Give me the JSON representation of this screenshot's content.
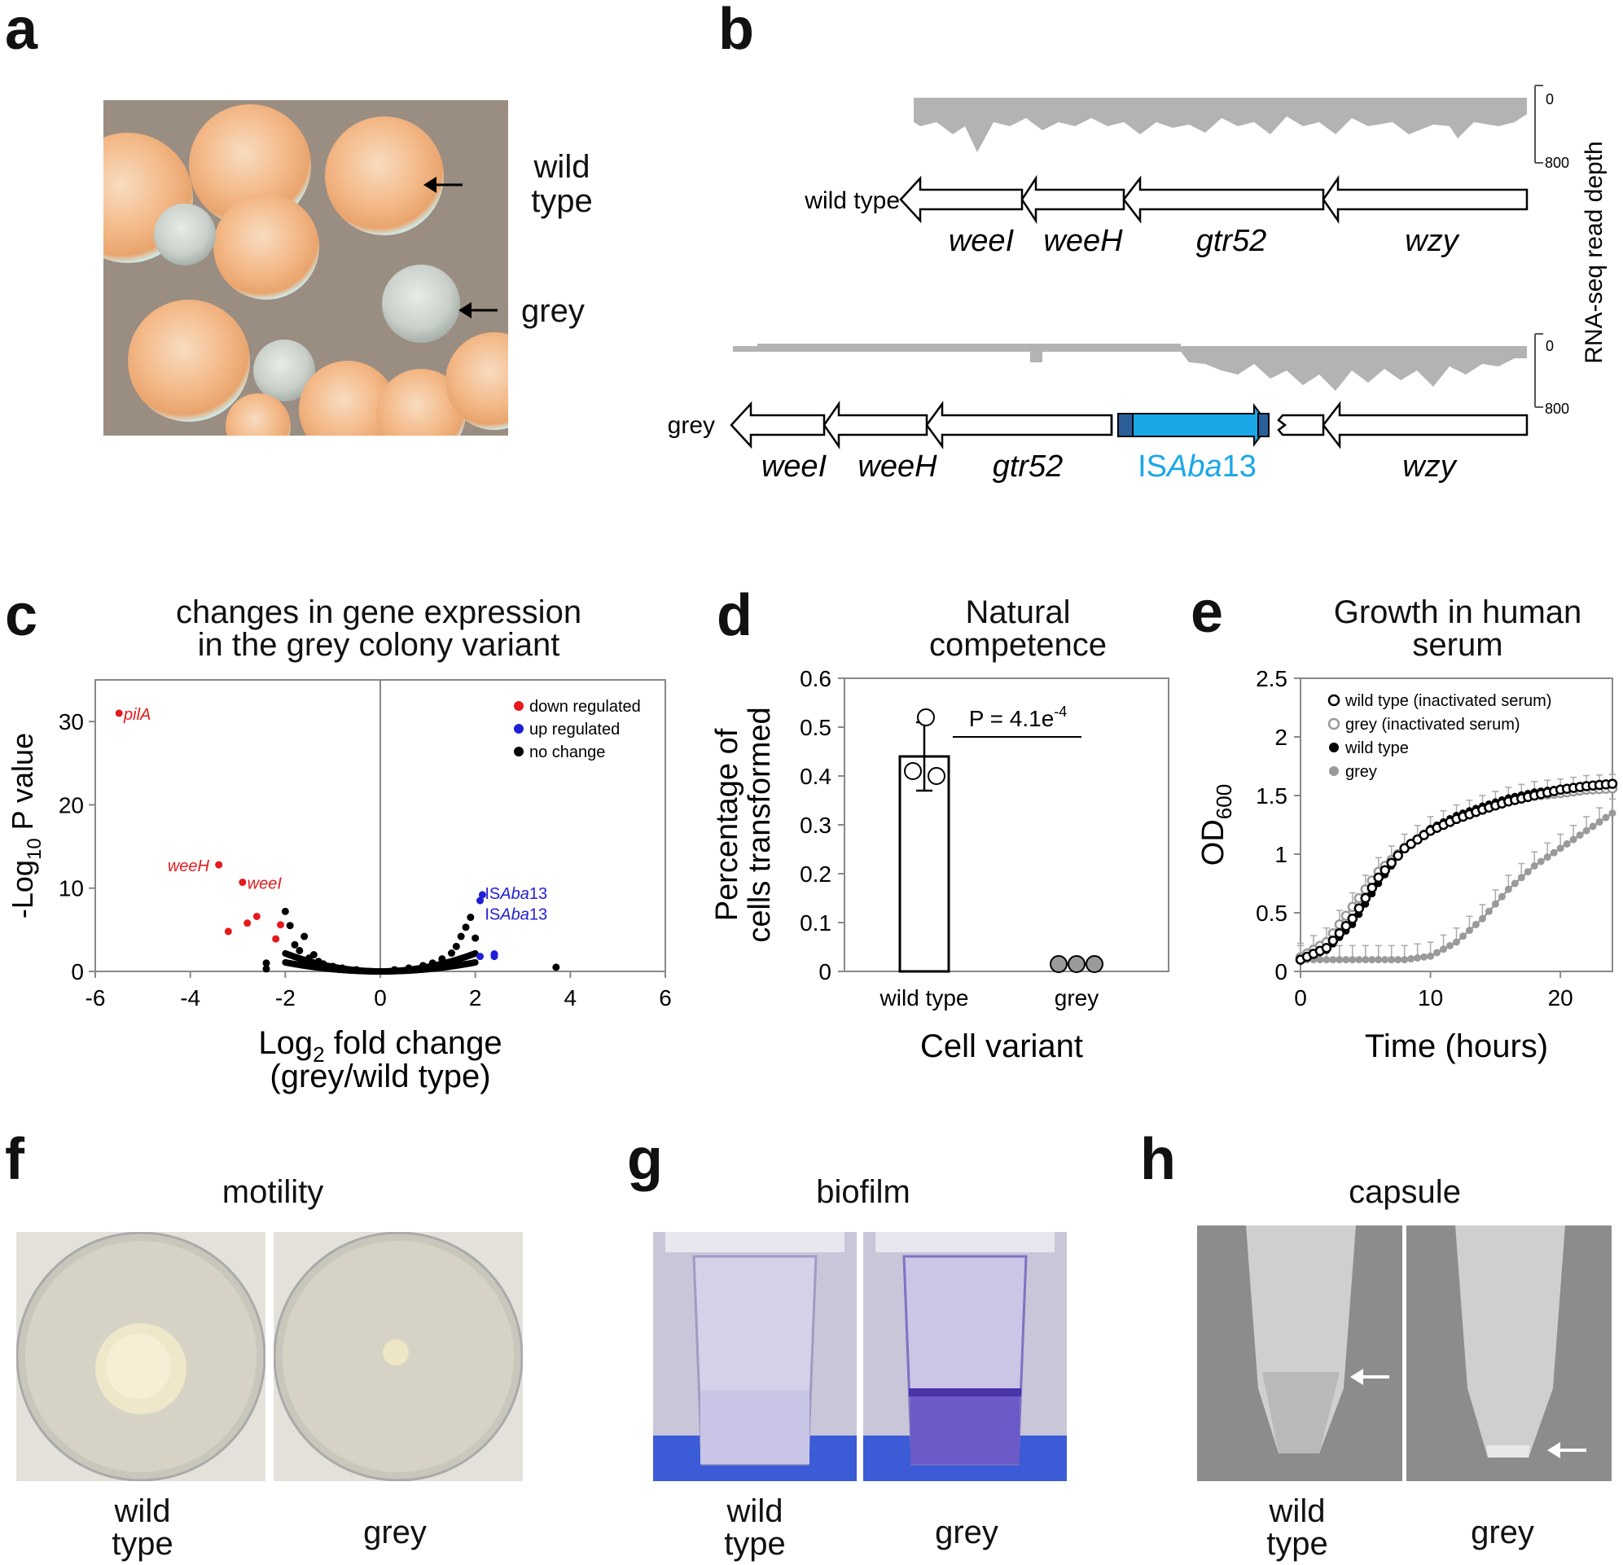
{
  "panels": {
    "a": {
      "letter": "a",
      "labels": [
        "wild\ntype",
        "grey"
      ],
      "wild": "wild",
      "type": "type",
      "grey": "grey"
    },
    "b": {
      "letter": "b",
      "wild_label": "wild type",
      "grey_label": "grey",
      "genes_wt": [
        "weeI",
        "weeH",
        "gtr52",
        "wzy"
      ],
      "genes_grey": [
        "weeI",
        "weeH",
        "gtr52",
        "wzy"
      ],
      "insertion": {
        "pre": "IS",
        "it": "Aba",
        "post": "13"
      },
      "scale_top": "0",
      "scale_bottom": "800",
      "axis_label": "RNA-seq read depth",
      "colors": {
        "insertion": "#1aa7e8",
        "insertion_dark": "#2b5f99",
        "coverage": "#b3b3b3"
      }
    },
    "c": {
      "letter": "c",
      "title1": "changes in gene expression",
      "title2": "in the grey colony variant",
      "ylabel_pre": "-Log",
      "ylabel_sub": "10",
      "ylabel_post": " P value",
      "xlabel_pre": "Log",
      "xlabel_sub": "2",
      "xlabel_post": " fold change",
      "xlabel2": "(grey/wild type)",
      "legend": [
        "down regulated",
        "up regulated",
        "no change"
      ],
      "annotations": {
        "pilA": "pilA",
        "weeH": "weeH",
        "weeI": "weeI",
        "is1": {
          "pre": "IS",
          "it": "Aba",
          "post": "13"
        }
      }
    },
    "d": {
      "letter": "d",
      "title1": "Natural",
      "title2": "competence",
      "ylabel1": "Percentage of",
      "ylabel2": "cells transformed",
      "xlabel": "Cell variant",
      "pvalue_pre": "P = 4.1e",
      "pvalue_sup": "-4"
    },
    "e": {
      "letter": "e",
      "title1": "Growth in human",
      "title2": "serum",
      "ylabel_pre": "OD",
      "ylabel_sub": "600",
      "xlabel": "Time (hours)",
      "legend": [
        "wild type (inactivated serum)",
        "grey (inactivated serum)",
        "wild type",
        "grey"
      ]
    },
    "f": {
      "letter": "f",
      "title": "motility",
      "left1": "wild",
      "left2": "type",
      "right": "grey"
    },
    "g": {
      "letter": "g",
      "title": "biofilm",
      "left1": "wild",
      "left2": "type",
      "right": "grey"
    },
    "h": {
      "letter": "h",
      "title": "capsule",
      "left1": "wild",
      "left2": "type",
      "right": "grey"
    }
  },
  "chart_data": [
    {
      "type": "scatter",
      "title": "changes in gene expression in the grey colony variant",
      "xlabel": "Log2 fold change (grey/wild type)",
      "ylabel": "-Log10 P value",
      "xlim": [
        -6,
        6
      ],
      "ylim": [
        0,
        35
      ],
      "xticks": [
        -6,
        -4,
        -2,
        0,
        2,
        4,
        6
      ],
      "yticks": [
        0,
        10,
        20,
        30
      ],
      "legend_position": "top-right",
      "series": [
        {
          "name": "down regulated",
          "color": "#e41a1c",
          "points": [
            [
              -5.5,
              31
            ],
            [
              -3.4,
              12.8
            ],
            [
              -2.9,
              10.7
            ],
            [
              -3.2,
              4.8
            ],
            [
              -2.8,
              5.8
            ],
            [
              -2.6,
              6.6
            ],
            [
              -2.2,
              3.9
            ],
            [
              -2.1,
              5.6
            ]
          ]
        },
        {
          "name": "up regulated",
          "color": "#1f1fd6",
          "points": [
            [
              2.1,
              8.5
            ],
            [
              2.15,
              9.2
            ],
            [
              2.1,
              1.8
            ],
            [
              2.4,
              1.8
            ],
            [
              2.4,
              2.1
            ]
          ]
        },
        {
          "name": "no change",
          "color": "#000000",
          "points": [
            [
              -2.4,
              0.3
            ],
            [
              -2.4,
              1.0
            ],
            [
              -2.0,
              7.2
            ],
            [
              -1.9,
              5.5
            ],
            [
              -1.8,
              3.2
            ],
            [
              -1.7,
              2.5
            ],
            [
              -1.6,
              4.2
            ],
            [
              -1.5,
              1.6
            ],
            [
              -1.4,
              2.0
            ],
            [
              -1.3,
              1.2
            ],
            [
              -1.2,
              0.9
            ],
            [
              -1.0,
              0.6
            ],
            [
              -0.8,
              0.4
            ],
            [
              -0.5,
              0.2
            ],
            [
              0.3,
              0.2
            ],
            [
              0.6,
              0.4
            ],
            [
              0.9,
              0.7
            ],
            [
              1.1,
              1.0
            ],
            [
              1.3,
              1.5
            ],
            [
              1.5,
              2.2
            ],
            [
              1.6,
              3.0
            ],
            [
              1.7,
              4.2
            ],
            [
              1.8,
              5.3
            ],
            [
              1.9,
              6.5
            ],
            [
              2.0,
              4.0
            ],
            [
              3.7,
              0.5
            ]
          ]
        }
      ],
      "annotations": [
        "pilA",
        "weeH",
        "weeI",
        "ISAba13",
        "ISAba13"
      ]
    },
    {
      "type": "bar",
      "title": "Natural competence",
      "xlabel": "Cell variant",
      "ylabel": "Percentage of cells transformed",
      "categories": [
        "wild type",
        "grey"
      ],
      "values": [
        0.44,
        0.0
      ],
      "error": [
        0.07,
        0.0
      ],
      "replicates": [
        [
          0.52,
          0.41,
          0.4
        ],
        [
          0.005,
          0.005,
          0.005
        ]
      ],
      "ylim": [
        0,
        0.6
      ],
      "yticks": [
        0,
        0.1,
        0.2,
        0.3,
        0.4,
        0.5,
        0.6
      ],
      "annotation": "P = 4.1e-4"
    },
    {
      "type": "line",
      "title": "Growth in human serum",
      "xlabel": "Time (hours)",
      "ylabel": "OD600",
      "xlim": [
        0,
        24
      ],
      "ylim": [
        0,
        2.5
      ],
      "xticks": [
        0,
        10,
        20
      ],
      "yticks": [
        0,
        0.5,
        1,
        1.5,
        2,
        2.5
      ],
      "legend_position": "top-left",
      "series": [
        {
          "name": "wild type (inactivated serum)",
          "marker": "open",
          "color": "#000000",
          "x": [
            0,
            2,
            4,
            6,
            8,
            10,
            12,
            14,
            16,
            18,
            20,
            22,
            24
          ],
          "y": [
            0.1,
            0.2,
            0.45,
            0.8,
            1.05,
            1.2,
            1.3,
            1.38,
            1.45,
            1.5,
            1.55,
            1.58,
            1.6
          ]
        },
        {
          "name": "grey (inactivated serum)",
          "marker": "open",
          "color": "#9a9a9a",
          "x": [
            0,
            2,
            4,
            6,
            8,
            10,
            12,
            14,
            16,
            18,
            20,
            22,
            24
          ],
          "y": [
            0.12,
            0.25,
            0.55,
            0.85,
            1.05,
            1.2,
            1.3,
            1.38,
            1.45,
            1.5,
            1.52,
            1.55,
            1.56
          ]
        },
        {
          "name": "wild type",
          "marker": "filled",
          "color": "#000000",
          "x": [
            0,
            2,
            4,
            6,
            8,
            10,
            12,
            14,
            16,
            18,
            20,
            22,
            24
          ],
          "y": [
            0.1,
            0.18,
            0.4,
            0.75,
            1.05,
            1.22,
            1.33,
            1.41,
            1.48,
            1.53,
            1.56,
            1.59,
            1.6
          ]
        },
        {
          "name": "grey",
          "marker": "filled",
          "color": "#9a9a9a",
          "x": [
            0,
            2,
            4,
            6,
            8,
            10,
            12,
            14,
            16,
            18,
            20,
            22,
            24
          ],
          "y": [
            0.1,
            0.1,
            0.1,
            0.1,
            0.1,
            0.13,
            0.25,
            0.45,
            0.7,
            0.9,
            1.05,
            1.2,
            1.35
          ]
        }
      ]
    }
  ]
}
